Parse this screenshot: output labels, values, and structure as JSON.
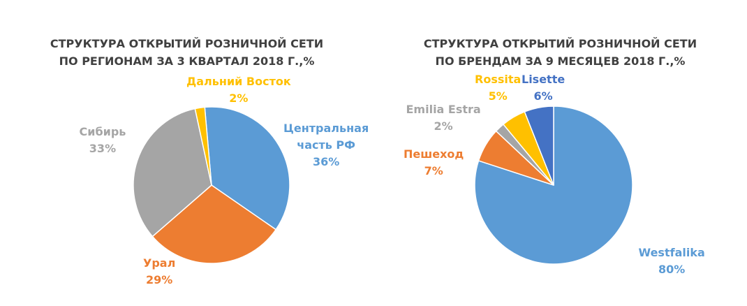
{
  "chart_data": [
    {
      "type": "pie",
      "title_lines": [
        "СТРУКТУРА ОТКРЫТИЙ РОЗНИЧНОЙ СЕТИ",
        "ПО РЕГИОНАМ ЗА 3 КВАРТАЛ 2018 Г.,%"
      ],
      "start_angle_deg": -5,
      "slices": [
        {
          "label_lines": [
            "Центральная",
            "часть РФ"
          ],
          "percent_label": "36%",
          "value": 36,
          "color": "#5B9BD5"
        },
        {
          "label_lines": [
            "Урал"
          ],
          "percent_label": "29%",
          "value": 29,
          "color": "#ED7D31"
        },
        {
          "label_lines": [
            "Сибирь"
          ],
          "percent_label": "33%",
          "value": 33,
          "color": "#A5A5A5"
        },
        {
          "label_lines": [
            "Дальний Восток"
          ],
          "percent_label": "2%",
          "value": 2,
          "color": "#FFC000"
        }
      ]
    },
    {
      "type": "pie",
      "title_lines": [
        "СТРУКТУРА ОТКРЫТИЙ РОЗНИЧНОЙ СЕТИ",
        "ПО БРЕНДАМ  ЗА 9 МЕСЯЦЕВ 2018 Г.,%"
      ],
      "start_angle_deg": 0,
      "slices": [
        {
          "label_lines": [
            "Westfalika"
          ],
          "percent_label": "80%",
          "value": 80,
          "color": "#5B9BD5"
        },
        {
          "label_lines": [
            "Пешеход"
          ],
          "percent_label": "7%",
          "value": 7,
          "color": "#ED7D31"
        },
        {
          "label_lines": [
            "Emilia Estra"
          ],
          "percent_label": "2%",
          "value": 2,
          "color": "#A5A5A5"
        },
        {
          "label_lines": [
            "Rossita"
          ],
          "percent_label": "5%",
          "value": 5,
          "color": "#FFC000"
        },
        {
          "label_lines": [
            "Lisette"
          ],
          "percent_label": "6%",
          "value": 6,
          "color": "#4472C4"
        }
      ]
    }
  ]
}
